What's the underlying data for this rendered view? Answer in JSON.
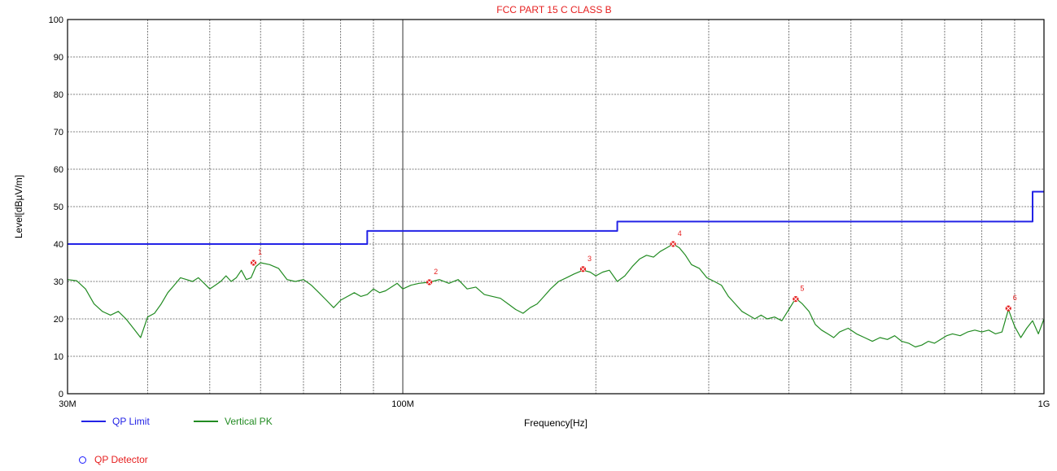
{
  "chart_data": {
    "type": "line",
    "title": "FCC PART 15 C CLASS B",
    "xlabel": "Frequency[Hz]",
    "ylabel": "Level[dBµV/m]",
    "x_scale": "log",
    "xlim": [
      30,
      1000
    ],
    "x_unit": "MHz",
    "ylim": [
      0,
      100
    ],
    "yticks": [
      0,
      10,
      20,
      30,
      40,
      50,
      60,
      70,
      80,
      90,
      100
    ],
    "xtick_labels": [
      {
        "x": 30,
        "label": "30M"
      },
      {
        "x": 100,
        "label": "100M"
      },
      {
        "x": 1000,
        "label": "1G"
      }
    ],
    "grid": true,
    "legend_position": "bottom-left",
    "series": [
      {
        "name": "QP Limit",
        "color": "#2323e6",
        "step_points": [
          [
            30,
            40
          ],
          [
            88,
            40
          ],
          [
            88,
            43.5
          ],
          [
            216,
            43.5
          ],
          [
            216,
            46
          ],
          [
            960,
            46
          ],
          [
            960,
            54
          ],
          [
            1000,
            54
          ]
        ]
      },
      {
        "name": "Vertical PK",
        "color": "#228b22",
        "points": [
          [
            30,
            30.5
          ],
          [
            31,
            30.2
          ],
          [
            32,
            28
          ],
          [
            33,
            24
          ],
          [
            34,
            22
          ],
          [
            35,
            21
          ],
          [
            36,
            22
          ],
          [
            37,
            20
          ],
          [
            38,
            17.5
          ],
          [
            39,
            15
          ],
          [
            40,
            20.5
          ],
          [
            41,
            21.5
          ],
          [
            42,
            24
          ],
          [
            43,
            27
          ],
          [
            44,
            29
          ],
          [
            45,
            31
          ],
          [
            46,
            30.5
          ],
          [
            47,
            30
          ],
          [
            48,
            31
          ],
          [
            49,
            29.5
          ],
          [
            50,
            28
          ],
          [
            51,
            29
          ],
          [
            52,
            30
          ],
          [
            53,
            31.5
          ],
          [
            54,
            30
          ],
          [
            55,
            31
          ],
          [
            56,
            33
          ],
          [
            57,
            30.5
          ],
          [
            58,
            31
          ],
          [
            59,
            34
          ],
          [
            60,
            35
          ],
          [
            62,
            34.5
          ],
          [
            64,
            33.5
          ],
          [
            66,
            30.5
          ],
          [
            68,
            30
          ],
          [
            70,
            30.5
          ],
          [
            72,
            29
          ],
          [
            74,
            27
          ],
          [
            76,
            25
          ],
          [
            78,
            23
          ],
          [
            80,
            25
          ],
          [
            82,
            26
          ],
          [
            84,
            27
          ],
          [
            86,
            26
          ],
          [
            88,
            26.5
          ],
          [
            90,
            28
          ],
          [
            92,
            27
          ],
          [
            94,
            27.5
          ],
          [
            96,
            28.5
          ],
          [
            98,
            29.5
          ],
          [
            100,
            28
          ],
          [
            103,
            29
          ],
          [
            106,
            29.5
          ],
          [
            110,
            29.8
          ],
          [
            114,
            30.5
          ],
          [
            118,
            29.5
          ],
          [
            122,
            30.5
          ],
          [
            126,
            28
          ],
          [
            130,
            28.5
          ],
          [
            134,
            26.5
          ],
          [
            138,
            26
          ],
          [
            142,
            25.5
          ],
          [
            146,
            24
          ],
          [
            150,
            22.5
          ],
          [
            154,
            21.5
          ],
          [
            158,
            23
          ],
          [
            162,
            24
          ],
          [
            166,
            26
          ],
          [
            170,
            28
          ],
          [
            175,
            30
          ],
          [
            180,
            31
          ],
          [
            185,
            32
          ],
          [
            191,
            33
          ],
          [
            196,
            32.5
          ],
          [
            200,
            31.5
          ],
          [
            205,
            32.5
          ],
          [
            210,
            33
          ],
          [
            216,
            30
          ],
          [
            222,
            31.5
          ],
          [
            228,
            34
          ],
          [
            234,
            36
          ],
          [
            240,
            37
          ],
          [
            246,
            36.5
          ],
          [
            252,
            38
          ],
          [
            258,
            39
          ],
          [
            264,
            40
          ],
          [
            270,
            39
          ],
          [
            276,
            37
          ],
          [
            282,
            34.5
          ],
          [
            290,
            33.5
          ],
          [
            298,
            31
          ],
          [
            306,
            30
          ],
          [
            314,
            29
          ],
          [
            322,
            26
          ],
          [
            330,
            24
          ],
          [
            338,
            22
          ],
          [
            346,
            21
          ],
          [
            354,
            20
          ],
          [
            362,
            21
          ],
          [
            370,
            20
          ],
          [
            380,
            20.5
          ],
          [
            390,
            19.5
          ],
          [
            400,
            22.5
          ],
          [
            410,
            25.5
          ],
          [
            420,
            24
          ],
          [
            430,
            22
          ],
          [
            440,
            18.5
          ],
          [
            450,
            17
          ],
          [
            460,
            16
          ],
          [
            470,
            15
          ],
          [
            480,
            16.5
          ],
          [
            495,
            17.5
          ],
          [
            510,
            16
          ],
          [
            525,
            15
          ],
          [
            540,
            14
          ],
          [
            555,
            15
          ],
          [
            570,
            14.5
          ],
          [
            585,
            15.5
          ],
          [
            600,
            14
          ],
          [
            615,
            13.5
          ],
          [
            630,
            12.5
          ],
          [
            645,
            13
          ],
          [
            660,
            14
          ],
          [
            675,
            13.5
          ],
          [
            690,
            14.5
          ],
          [
            705,
            15.5
          ],
          [
            720,
            16
          ],
          [
            740,
            15.5
          ],
          [
            760,
            16.5
          ],
          [
            780,
            17
          ],
          [
            800,
            16.5
          ],
          [
            820,
            17
          ],
          [
            840,
            16
          ],
          [
            860,
            16.5
          ],
          [
            880,
            22.5
          ],
          [
            900,
            18
          ],
          [
            920,
            15
          ],
          [
            940,
            17.5
          ],
          [
            960,
            19.5
          ],
          [
            980,
            16
          ],
          [
            1000,
            20
          ]
        ]
      }
    ],
    "markers": [
      {
        "label": "1",
        "x": 58.5,
        "y": 35.0,
        "color": "#e62020"
      },
      {
        "label": "2",
        "x": 110.0,
        "y": 29.8,
        "color": "#e62020"
      },
      {
        "label": "3",
        "x": 191.0,
        "y": 33.3,
        "color": "#e62020"
      },
      {
        "label": "4",
        "x": 264.0,
        "y": 40.0,
        "color": "#e62020"
      },
      {
        "label": "5",
        "x": 410.0,
        "y": 25.3,
        "color": "#e62020"
      },
      {
        "label": "6",
        "x": 880.0,
        "y": 22.8,
        "color": "#e62020"
      }
    ]
  },
  "legend": {
    "items": [
      {
        "label": "QP Limit",
        "color": "#2323e6"
      },
      {
        "label": "Vertical PK",
        "color": "#228b22"
      }
    ],
    "detector_label": "QP Detector",
    "detector_color": "#1a1aff",
    "detector_text_color": "#e62020"
  }
}
